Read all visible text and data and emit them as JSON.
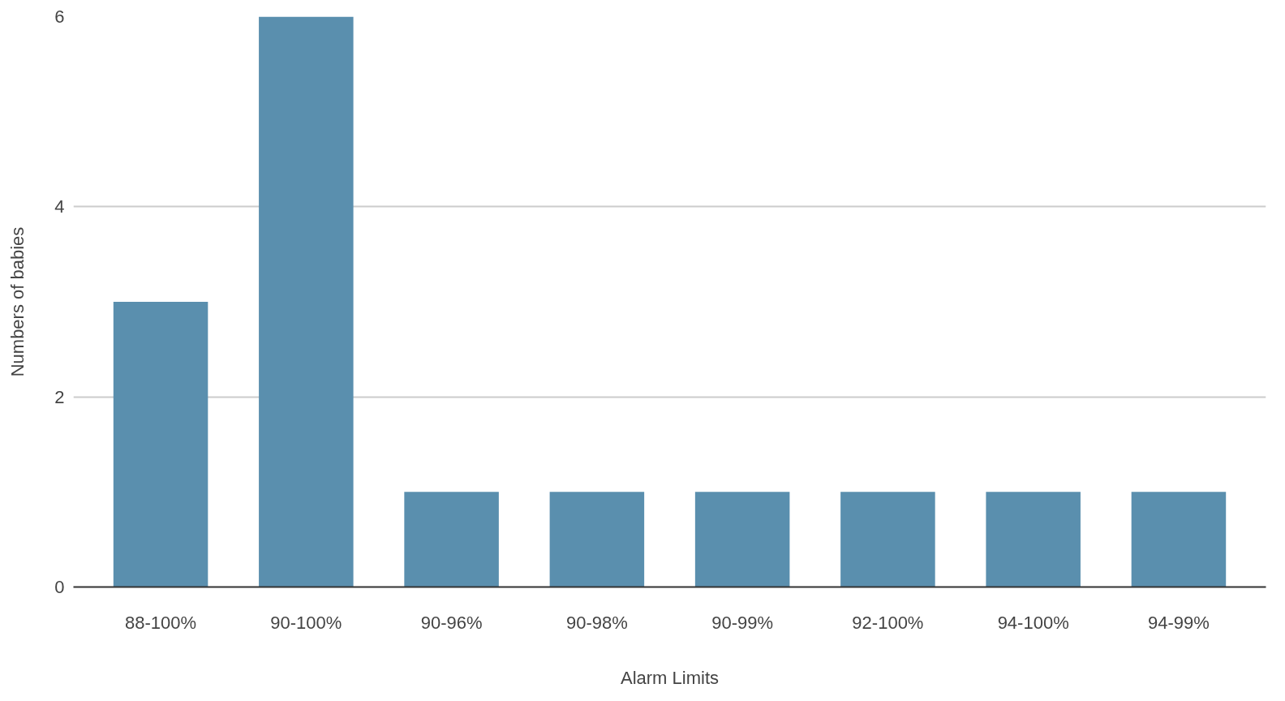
{
  "chart_data": {
    "type": "bar",
    "xlabel": "Alarm Limits",
    "ylabel": "Numbers of babies",
    "categories": [
      "88-100%",
      "90-100%",
      "90-96%",
      "90-98%",
      "90-99%",
      "92-100%",
      "94-100%",
      "94-99%"
    ],
    "values": [
      3,
      6,
      1,
      1,
      1,
      1,
      1,
      1
    ],
    "color": "#5a8fae",
    "ylim": [
      0,
      6
    ],
    "yticks": [
      0,
      2,
      4,
      6
    ],
    "grid": "y"
  }
}
